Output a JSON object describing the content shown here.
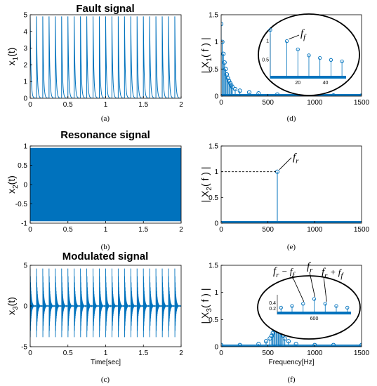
{
  "panel_labels": [
    "(a)",
    "(b)",
    "(c)",
    "(d)",
    "(e)",
    "(f)"
  ],
  "colors": {
    "series": "#0072BD",
    "axis": "#000000"
  },
  "chart_data": [
    {
      "id": "a",
      "type": "line",
      "title": "Fault signal",
      "ylabel": "x",
      "ylabel_sub": "1",
      "ylabel_tail": "(t)",
      "xlabel": "",
      "xlim": [
        0,
        2
      ],
      "ylim": [
        0,
        5
      ],
      "xticks": [
        "0",
        "0.5",
        "1",
        "1.5",
        "2"
      ],
      "yticks": [
        "0",
        "1",
        "2",
        "3",
        "4",
        "5"
      ],
      "series": [
        {
          "peak": 4.9,
          "impulse_interval_sec": 0.0833,
          "decay_time_const_sec": 0.01,
          "impulse_count": 24
        }
      ]
    },
    {
      "id": "d",
      "type": "stem",
      "title": "",
      "ylabel": "| X",
      "ylabel_sub": "1",
      "ylabel_tail": "( f ) |",
      "xlabel": "",
      "xlim": [
        0,
        1500
      ],
      "ylim": [
        0,
        1.5
      ],
      "xticks": [
        "0",
        "500",
        "1000",
        "1500"
      ],
      "yticks": [
        "0",
        "0.5",
        "1",
        "1.5"
      ],
      "series": [
        {
          "x": [
            0,
            12,
            24,
            36,
            48,
            60,
            72,
            84,
            96,
            108,
            120,
            150,
            200,
            300,
            400,
            600,
            800,
            1000,
            1200,
            1500
          ],
          "y": [
            1.33,
            1.0,
            0.78,
            0.62,
            0.5,
            0.4,
            0.33,
            0.28,
            0.24,
            0.2,
            0.17,
            0.13,
            0.1,
            0.07,
            0.05,
            0.03,
            0.02,
            0.015,
            0.012,
            0.01
          ]
        }
      ],
      "inset": {
        "xticks": [
          "20",
          "40"
        ],
        "yticks": [
          "0.5",
          "1"
        ],
        "xlim": [
          0,
          55
        ],
        "ylim": [
          0,
          1.2
        ],
        "x": [
          0,
          12,
          20,
          28,
          36,
          44,
          52
        ],
        "y": [
          1.3,
          1.0,
          0.78,
          0.62,
          0.55,
          0.5,
          0.46
        ],
        "annotations": [
          {
            "text": "f",
            "sub": "f"
          }
        ]
      }
    },
    {
      "id": "b",
      "type": "area",
      "title": "Resonance signal",
      "ylabel": "x",
      "ylabel_sub": "2",
      "ylabel_tail": "(t)",
      "xlabel": "",
      "xlim": [
        0,
        2
      ],
      "ylim": [
        -1,
        1
      ],
      "xticks": [
        "0",
        "0.5",
        "1",
        "1.5",
        "2"
      ],
      "yticks": [
        "-1",
        "-0.5",
        "0",
        "0.5",
        "1"
      ],
      "series": [
        {
          "amplitude": 0.95,
          "frequency_hz": 600
        }
      ]
    },
    {
      "id": "e",
      "type": "stem",
      "title": "",
      "ylabel": "| X",
      "ylabel_sub": "2",
      "ylabel_tail": "( f ) |",
      "xlabel": "",
      "xlim": [
        0,
        1500
      ],
      "ylim": [
        0,
        1.5
      ],
      "xticks": [
        "0",
        "500",
        "1000",
        "1500"
      ],
      "yticks": [
        "0",
        "0.5",
        "1",
        "1.5"
      ],
      "series": [
        {
          "x": [
            600
          ],
          "y": [
            1.0
          ]
        }
      ],
      "annotations": [
        {
          "text": "f",
          "sub": "r"
        }
      ]
    },
    {
      "id": "c",
      "type": "line",
      "title": "Modulated signal",
      "ylabel": "x",
      "ylabel_sub": "3",
      "ylabel_tail": "(t)",
      "xlabel": "Time[sec]",
      "xlim": [
        0,
        2
      ],
      "ylim": [
        -5,
        5
      ],
      "xticks": [
        "0",
        "0.5",
        "1",
        "1.5",
        "2"
      ],
      "yticks": [
        "-5",
        "0",
        "5"
      ],
      "series": [
        {
          "positive_peak": 4.6,
          "negative_peak": -4.3,
          "impulse_interval_sec": 0.0833,
          "impulse_count": 24
        }
      ]
    },
    {
      "id": "f",
      "type": "stem",
      "title": "",
      "ylabel": "| X",
      "ylabel_sub": "3",
      "ylabel_tail": "( f ) |",
      "xlabel": "Frequency[Hz]",
      "xlim": [
        0,
        1500
      ],
      "ylim": [
        0,
        1.5
      ],
      "xticks": [
        "0",
        "500",
        "1000",
        "1500"
      ],
      "yticks": [
        "0",
        "0.5",
        "1",
        "1.5"
      ],
      "series": [
        {
          "x": [
            0,
            200,
            400,
            480,
            520,
            540,
            552,
            564,
            576,
            588,
            600,
            612,
            624,
            636,
            648,
            660,
            680,
            720,
            800,
            1000,
            1200,
            1500
          ],
          "y": [
            0.03,
            0.03,
            0.05,
            0.1,
            0.15,
            0.2,
            0.25,
            0.32,
            0.42,
            0.55,
            0.6,
            0.55,
            0.42,
            0.32,
            0.25,
            0.2,
            0.15,
            0.1,
            0.05,
            0.03,
            0.03,
            0.03
          ]
        }
      ],
      "inset": {
        "xticks": [
          "600"
        ],
        "yticks": [
          "0.2",
          "0.4"
        ],
        "xlim": [
          560,
          640
        ],
        "ylim": [
          0,
          0.7
        ],
        "x": [
          564,
          576,
          588,
          600,
          612,
          624,
          636
        ],
        "y": [
          0.24,
          0.3,
          0.38,
          0.55,
          0.38,
          0.3,
          0.24
        ],
        "annotations": [
          {
            "text": "f",
            "sub": "r",
            "tail": " − f",
            "tail_sub": "f"
          },
          {
            "text": "f",
            "sub": "r"
          },
          {
            "text": "f",
            "sub": "r",
            "tail": " + f",
            "tail_sub": "f"
          }
        ]
      }
    }
  ]
}
